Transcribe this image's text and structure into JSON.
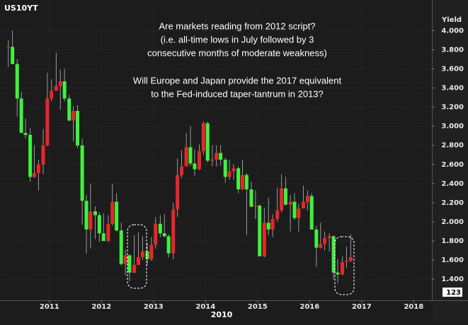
{
  "chart_data": {
    "type": "candlestick",
    "symbol": "US10YT",
    "y_label": "Yield",
    "x_label": "2010",
    "annotation": [
      [
        "Are markets reading from 2012 script?",
        "(i.e. all-time lows in July followed by 3",
        "consecutive months of moderate weakness)"
      ],
      [
        "Will Europe and Japan provide the 2017 equivalent",
        "to the Fed-induced taper-tantrum in 2013?"
      ]
    ],
    "current_label": "123",
    "up_color": "#e8262a",
    "down_color": "#3ef23e",
    "grid": true,
    "xlim": [
      2010.05,
      2018.35
    ],
    "xticks": [
      2011,
      2012,
      2013,
      2014,
      2015,
      2016,
      2017,
      2018
    ],
    "ylim": [
      1.18,
      4.32
    ],
    "yticks": [
      {
        "value": 1.4,
        "label": "1.400"
      },
      {
        "value": 1.6,
        "label": "1.600"
      },
      {
        "value": 1.8,
        "label": "1.800"
      },
      {
        "value": 2.0,
        "label": "2.000"
      },
      {
        "value": 2.2,
        "label": "2.200"
      },
      {
        "value": 2.4,
        "label": "2.400"
      },
      {
        "value": 2.6,
        "label": "2.600"
      },
      {
        "value": 2.8,
        "label": "2.800"
      },
      {
        "value": 3.0,
        "label": "3.000"
      },
      {
        "value": 3.2,
        "label": "3.200"
      },
      {
        "value": 3.4,
        "label": "3.400"
      },
      {
        "value": 3.6,
        "label": "3.600"
      },
      {
        "value": 3.8,
        "label": "3.800"
      },
      {
        "value": 4.0,
        "label": "4.000"
      }
    ],
    "x": [
      2010.21,
      2010.29,
      2010.38,
      2010.46,
      2010.54,
      2010.63,
      2010.71,
      2010.79,
      2010.88,
      2010.96,
      2011.04,
      2011.13,
      2011.21,
      2011.29,
      2011.38,
      2011.46,
      2011.54,
      2011.63,
      2011.71,
      2011.79,
      2011.88,
      2011.96,
      2012.04,
      2012.13,
      2012.21,
      2012.29,
      2012.38,
      2012.46,
      2012.54,
      2012.63,
      2012.71,
      2012.79,
      2012.88,
      2012.96,
      2013.04,
      2013.13,
      2013.21,
      2013.29,
      2013.38,
      2013.46,
      2013.54,
      2013.63,
      2013.71,
      2013.79,
      2013.88,
      2013.96,
      2014.04,
      2014.13,
      2014.21,
      2014.29,
      2014.38,
      2014.46,
      2014.54,
      2014.63,
      2014.71,
      2014.79,
      2014.88,
      2014.96,
      2015.04,
      2015.13,
      2015.21,
      2015.29,
      2015.38,
      2015.46,
      2015.54,
      2015.63,
      2015.71,
      2015.79,
      2015.88,
      2015.96,
      2016.04,
      2016.13,
      2016.21,
      2016.29,
      2016.38,
      2016.46,
      2016.54,
      2016.63,
      2016.71,
      2016.79
    ],
    "open": [
      3.83,
      3.83,
      3.65,
      3.29,
      2.93,
      2.91,
      2.47,
      2.51,
      2.6,
      2.8,
      3.29,
      3.37,
      3.42,
      3.47,
      3.29,
      3.06,
      3.16,
      2.8,
      2.22,
      1.92,
      2.11,
      2.07,
      1.88,
      1.8,
      1.98,
      2.21,
      1.91,
      1.56,
      1.65,
      1.47,
      1.55,
      1.63,
      1.69,
      1.61,
      1.76,
      1.98,
      1.88,
      1.85,
      1.67,
      2.13,
      2.49,
      2.58,
      2.78,
      2.61,
      2.55,
      2.74,
      3.03,
      2.64,
      2.65,
      2.72,
      2.65,
      2.47,
      2.53,
      2.56,
      2.34,
      2.49,
      2.34,
      2.16,
      2.17,
      1.64,
      1.99,
      1.92,
      2.03,
      2.12,
      2.35,
      2.18,
      2.21,
      2.04,
      2.14,
      2.21,
      2.27,
      1.92,
      1.73,
      1.77,
      1.83,
      1.85,
      1.47,
      1.45,
      1.58,
      1.59
    ],
    "high": [
      3.9,
      4.0,
      3.7,
      3.36,
      3.08,
      2.98,
      2.8,
      2.65,
      2.97,
      3.56,
      3.49,
      3.77,
      3.59,
      3.6,
      3.33,
      3.21,
      3.22,
      2.87,
      2.28,
      2.4,
      2.16,
      2.1,
      2.09,
      2.07,
      2.4,
      2.3,
      1.99,
      1.71,
      1.66,
      1.86,
      1.89,
      1.85,
      1.78,
      1.84,
      2.05,
      2.07,
      2.08,
      1.87,
      2.2,
      2.66,
      2.75,
      2.93,
      3.0,
      2.76,
      2.81,
      3.05,
      3.05,
      2.8,
      2.8,
      2.8,
      2.67,
      2.65,
      2.6,
      2.58,
      2.65,
      2.51,
      2.42,
      2.33,
      2.18,
      2.15,
      2.25,
      2.08,
      2.36,
      2.5,
      2.47,
      2.28,
      2.3,
      2.19,
      2.38,
      2.33,
      2.3,
      1.96,
      1.99,
      1.9,
      1.88,
      1.86,
      1.61,
      1.64,
      1.74,
      1.87
    ],
    "low": [
      3.62,
      3.68,
      3.1,
      2.94,
      2.87,
      2.42,
      2.46,
      2.33,
      2.5,
      2.79,
      3.26,
      3.4,
      3.17,
      3.26,
      3.05,
      2.84,
      2.77,
      1.97,
      1.67,
      1.72,
      1.82,
      1.79,
      1.8,
      1.79,
      1.96,
      1.9,
      1.54,
      1.44,
      1.38,
      1.46,
      1.55,
      1.6,
      1.55,
      1.59,
      1.72,
      1.84,
      1.84,
      1.63,
      1.61,
      2.05,
      2.46,
      2.58,
      2.58,
      2.48,
      2.54,
      2.7,
      2.62,
      2.58,
      2.58,
      2.59,
      2.41,
      2.44,
      2.44,
      2.3,
      2.33,
      1.86,
      2.15,
      2.03,
      1.64,
      1.63,
      1.86,
      1.84,
      2.0,
      2.1,
      2.17,
      1.9,
      2.02,
      1.9,
      2.14,
      2.12,
      1.93,
      1.53,
      1.72,
      1.7,
      1.69,
      1.4,
      1.36,
      1.44,
      1.52,
      1.58
    ],
    "close": [
      3.83,
      3.65,
      3.29,
      2.93,
      2.91,
      2.47,
      2.51,
      2.6,
      2.8,
      3.29,
      3.37,
      3.42,
      3.47,
      3.29,
      3.06,
      3.16,
      2.8,
      2.22,
      1.92,
      2.11,
      2.07,
      1.88,
      1.8,
      1.98,
      2.21,
      1.91,
      1.56,
      1.65,
      1.47,
      1.55,
      1.63,
      1.69,
      1.61,
      1.76,
      1.98,
      1.88,
      1.85,
      1.67,
      2.13,
      2.49,
      2.58,
      2.78,
      2.61,
      2.55,
      2.74,
      3.03,
      2.64,
      2.65,
      2.72,
      2.65,
      2.47,
      2.53,
      2.56,
      2.34,
      2.49,
      2.34,
      2.16,
      2.17,
      1.64,
      1.99,
      1.92,
      2.03,
      2.12,
      2.35,
      2.18,
      2.21,
      2.04,
      2.14,
      2.21,
      2.27,
      1.92,
      1.73,
      1.77,
      1.83,
      1.85,
      1.47,
      1.45,
      1.58,
      1.59,
      1.63
    ]
  }
}
